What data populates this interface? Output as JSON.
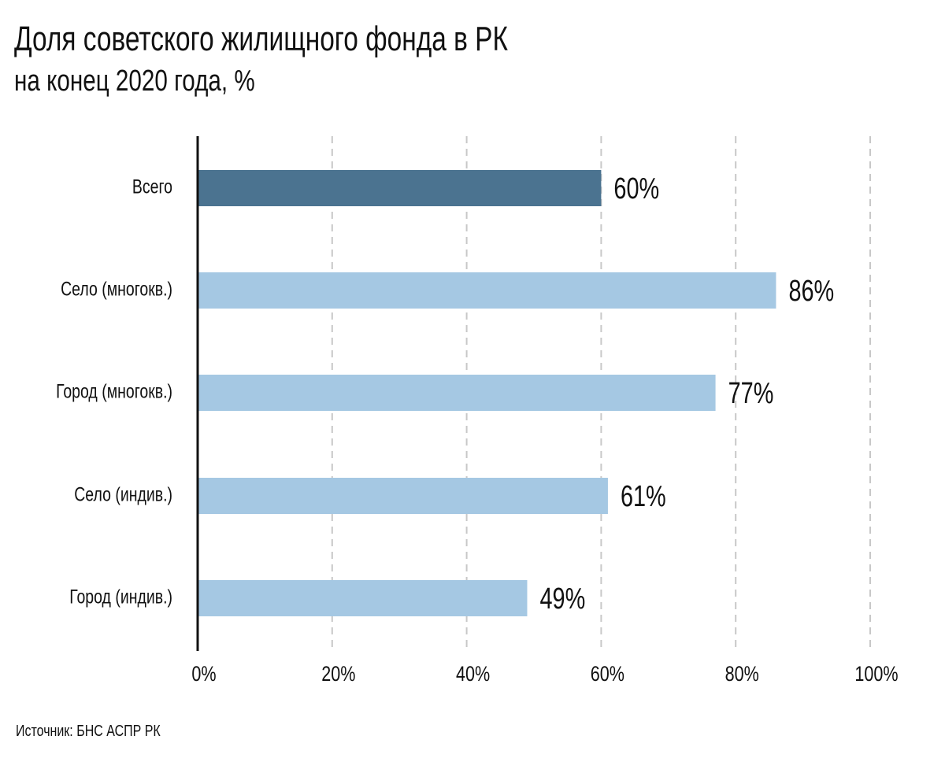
{
  "header": {
    "title": "Доля советского жилищного фонда в РК",
    "subtitle": "на конец 2020 года, %"
  },
  "footer": {
    "source": "Источник: БНС АСПР РК"
  },
  "colors": {
    "highlight": "#4b7390",
    "bar": "#a5c8e3",
    "grid": "#c8c8c8",
    "axis": "#111111"
  },
  "chart_data": {
    "type": "bar",
    "orientation": "horizontal",
    "categories": [
      "Всего",
      "Село (многокв.)",
      "Город (многокв.)",
      "Село (индив.)",
      "Город (индив.)"
    ],
    "values": [
      60,
      86,
      77,
      61,
      49
    ],
    "value_labels": [
      "60%",
      "86%",
      "77%",
      "61%",
      "49%"
    ],
    "highlight_index": 0,
    "xlim": [
      0,
      100
    ],
    "x_ticks": [
      0,
      20,
      40,
      60,
      80,
      100
    ],
    "x_tick_labels": [
      "0%",
      "20%",
      "40%",
      "60%",
      "80%",
      "100%"
    ],
    "grid": true,
    "legend": "none"
  }
}
